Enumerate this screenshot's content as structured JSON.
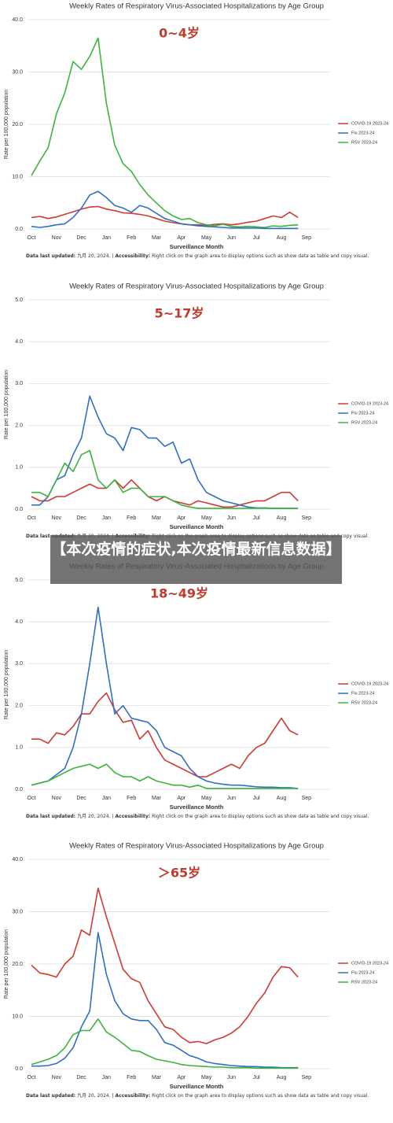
{
  "banner": "【本次疫情的症状,本次疫情最新信息数据】",
  "chart_data": [
    {
      "type": "line",
      "title": "Weekly Rates of Respiratory Virus-Associated Hospitalizations by Age Group",
      "subtitle": "0~4岁",
      "xlabel": "Surveillance Month",
      "ylabel": "Rate per 100,000 population",
      "categories": [
        "Oct",
        null,
        null,
        "Nov",
        null,
        null,
        "Dec",
        null,
        null,
        "Jan",
        null,
        null,
        "Feb",
        null,
        null,
        "Mar",
        null,
        null,
        "Apr",
        null,
        null,
        "May",
        null,
        null,
        "Jun",
        null,
        null,
        "Jul",
        null,
        null,
        "Aug",
        null,
        null,
        "Sep",
        null,
        null
      ],
      "ylim": [
        0,
        40
      ],
      "yticks": [
        {
          "value": 0,
          "label": "0.0"
        },
        {
          "value": 10,
          "label": "10.0"
        },
        {
          "value": 20,
          "label": "20.0"
        },
        {
          "value": 30,
          "label": "30.0"
        },
        {
          "value": 40,
          "label": "40.0"
        }
      ],
      "grid": true,
      "series": [
        {
          "name": "COVID-19 2023-24",
          "color": "#d03a32",
          "values": [
            2.2,
            2.4,
            2,
            2.3,
            2.8,
            3.3,
            3.8,
            4.2,
            4.3,
            3.8,
            3.5,
            3.1,
            3,
            2.8,
            2.5,
            2,
            1.5,
            1.2,
            1,
            0.8,
            0.8,
            0.7,
            0.9,
            1,
            0.8,
            1,
            1.3,
            1.5,
            2,
            2.5,
            2.2,
            3.2,
            2.2,
            null,
            null,
            null
          ]
        },
        {
          "name": "Flu 2023-24",
          "color": "#2f6fc4",
          "values": [
            0.5,
            0.3,
            0.5,
            0.8,
            1,
            2.2,
            4,
            6.5,
            7.2,
            6,
            4.5,
            4,
            3.2,
            4.5,
            4,
            3,
            2,
            1.5,
            1,
            0.8,
            0.6,
            0.5,
            0.4,
            0.3,
            0.2,
            0.2,
            0.2,
            0.2,
            0.1,
            0.1,
            0.1,
            0.1,
            0.1,
            null,
            null,
            null
          ]
        },
        {
          "name": "RSV 2023-24",
          "color": "#3cb43c",
          "values": [
            10.2,
            13,
            15.5,
            22,
            26,
            32,
            30.5,
            33,
            36.5,
            24,
            16,
            12.5,
            11,
            8.5,
            6.5,
            5,
            3.5,
            2.5,
            1.8,
            2,
            1.2,
            0.8,
            0.6,
            0.9,
            0.5,
            0.4,
            0.5,
            0.4,
            0.3,
            0.6,
            0.5,
            0.7,
            0.8,
            null,
            null,
            null
          ]
        }
      ],
      "note": [
        "Data last updated:",
        " 九月 20, 2024. | ",
        "Accessibility:",
        " Right click on the graph area to display options such as show data as table and copy visual."
      ]
    },
    {
      "type": "line",
      "title": "Weekly Rates of Respiratory Virus-Associated Hospitalizations by Age Group",
      "subtitle": "5~17岁",
      "xlabel": "Surveillance Month",
      "ylabel": "Rate per 100,000 population",
      "categories": [
        "Oct",
        null,
        null,
        "Nov",
        null,
        null,
        "Dec",
        null,
        null,
        "Jan",
        null,
        null,
        "Feb",
        null,
        null,
        "Mar",
        null,
        null,
        "Apr",
        null,
        null,
        "May",
        null,
        null,
        "Jun",
        null,
        null,
        "Jul",
        null,
        null,
        "Aug",
        null,
        null,
        "Sep",
        null,
        null
      ],
      "ylim": [
        0,
        5
      ],
      "yticks": [
        {
          "value": 0,
          "label": "0.0"
        },
        {
          "value": 1,
          "label": "1.0"
        },
        {
          "value": 2,
          "label": "2.0"
        },
        {
          "value": 3,
          "label": "3.0"
        },
        {
          "value": 4,
          "label": "4.0"
        },
        {
          "value": 5,
          "label": "5.0"
        }
      ],
      "grid": true,
      "series": [
        {
          "name": "COVID-19 2023-24",
          "color": "#d03a32",
          "values": [
            0.3,
            0.2,
            0.2,
            0.3,
            0.3,
            0.4,
            0.5,
            0.6,
            0.5,
            0.5,
            0.7,
            0.5,
            0.7,
            0.5,
            0.3,
            0.2,
            0.3,
            0.2,
            0.15,
            0.1,
            0.2,
            0.15,
            0.1,
            0.05,
            0.05,
            0.1,
            0.15,
            0.2,
            0.2,
            0.3,
            0.4,
            0.4,
            0.2,
            null,
            null,
            null
          ]
        },
        {
          "name": "Flu 2023-24",
          "color": "#2f6fc4",
          "values": [
            0.1,
            0.1,
            0.3,
            0.7,
            0.8,
            1.3,
            1.7,
            2.7,
            2.2,
            1.8,
            1.7,
            1.4,
            1.95,
            1.9,
            1.7,
            1.7,
            1.5,
            1.6,
            1.1,
            1.2,
            0.7,
            0.4,
            0.3,
            0.2,
            0.15,
            0.1,
            0.05,
            0.03,
            0.03,
            0.02,
            0.02,
            0.02,
            0.02,
            null,
            null,
            null
          ]
        },
        {
          "name": "RSV 2023-24",
          "color": "#3cb43c",
          "values": [
            0.4,
            0.4,
            0.3,
            0.7,
            1.1,
            0.9,
            1.3,
            1.4,
            0.7,
            0.5,
            0.7,
            0.4,
            0.5,
            0.5,
            0.3,
            0.3,
            0.3,
            0.2,
            0.1,
            0.05,
            0.02,
            0.02,
            0.02,
            0.02,
            0.02,
            0.02,
            0.02,
            0.02,
            0.02,
            0.02,
            0.02,
            0.02,
            0.02,
            null,
            null,
            null
          ]
        }
      ],
      "note": [
        "Data last updated:",
        " 九月 20, 2024. | ",
        "Accessibility:",
        " Right click on the graph area to display options such as show data as table and copy visual."
      ]
    },
    {
      "type": "line",
      "title": "Weekly Rates of Respiratory Virus-Associated Hospitalizations by Age Group",
      "subtitle": "18~49岁",
      "xlabel": "Surveillance Month",
      "ylabel": "Rate per 100,000 population",
      "categories": [
        "Oct",
        null,
        null,
        "Nov",
        null,
        null,
        "Dec",
        null,
        null,
        "Jan",
        null,
        null,
        "Feb",
        null,
        null,
        "Mar",
        null,
        null,
        "Apr",
        null,
        null,
        "May",
        null,
        null,
        "Jun",
        null,
        null,
        "Jul",
        null,
        null,
        "Aug",
        null,
        null,
        "Sep",
        null,
        null
      ],
      "ylim": [
        0,
        5
      ],
      "yticks": [
        {
          "value": 0,
          "label": "0.0"
        },
        {
          "value": 1,
          "label": "1.0"
        },
        {
          "value": 2,
          "label": "2.0"
        },
        {
          "value": 3,
          "label": "3.0"
        },
        {
          "value": 4,
          "label": "4.0"
        },
        {
          "value": 5,
          "label": "5.0"
        }
      ],
      "grid": true,
      "series": [
        {
          "name": "COVID-19 2023-24",
          "color": "#d03a32",
          "values": [
            1.2,
            1.2,
            1.1,
            1.35,
            1.3,
            1.5,
            1.8,
            1.8,
            2.1,
            2.3,
            1.9,
            1.6,
            1.65,
            1.2,
            1.4,
            1,
            0.7,
            0.6,
            0.5,
            0.4,
            0.3,
            0.3,
            0.4,
            0.5,
            0.6,
            0.5,
            0.8,
            1,
            1.1,
            1.4,
            1.7,
            1.4,
            1.3,
            null,
            null,
            null
          ]
        },
        {
          "name": "Flu 2023-24",
          "color": "#2f6fc4",
          "values": [
            0.1,
            0.15,
            0.2,
            0.35,
            0.5,
            1,
            1.8,
            3,
            4.35,
            3,
            1.8,
            2,
            1.7,
            1.65,
            1.6,
            1.4,
            1,
            0.9,
            0.8,
            0.5,
            0.3,
            0.2,
            0.15,
            0.12,
            0.1,
            0.1,
            0.08,
            0.06,
            0.05,
            0.05,
            0.04,
            0.04,
            0.02,
            null,
            null,
            null
          ]
        },
        {
          "name": "RSV 2023-24",
          "color": "#3cb43c",
          "values": [
            0.1,
            0.15,
            0.2,
            0.3,
            0.4,
            0.5,
            0.55,
            0.6,
            0.5,
            0.6,
            0.4,
            0.3,
            0.3,
            0.2,
            0.3,
            0.2,
            0.15,
            0.1,
            0.1,
            0.05,
            0.1,
            0.02,
            0.02,
            0.02,
            0.02,
            0.02,
            0.02,
            0.02,
            0.02,
            0.02,
            0.02,
            0.02,
            0.02,
            null,
            null,
            null
          ]
        }
      ],
      "note": [
        "Data last updated:",
        " 九月 20, 2024. | ",
        "Accessibility:",
        " Right click on the graph area to display options such as show data as table and copy visual."
      ]
    },
    {
      "type": "line",
      "title": "Weekly Rates of Respiratory Virus-Associated Hospitalizations by Age Group",
      "subtitle": "＞65岁",
      "xlabel": "Surveillance Month",
      "ylabel": "Rate per 100,000 population",
      "categories": [
        "Oct",
        null,
        null,
        "Nov",
        null,
        null,
        "Dec",
        null,
        null,
        "Jan",
        null,
        null,
        "Feb",
        null,
        null,
        "Mar",
        null,
        null,
        "Apr",
        null,
        null,
        "May",
        null,
        null,
        "Jun",
        null,
        null,
        "Jul",
        null,
        null,
        "Aug",
        null,
        null,
        "Sep",
        null,
        null
      ],
      "ylim": [
        0,
        40
      ],
      "yticks": [
        {
          "value": 0,
          "label": "0.0"
        },
        {
          "value": 10,
          "label": "10.0"
        },
        {
          "value": 20,
          "label": "20.0"
        },
        {
          "value": 30,
          "label": "30.0"
        },
        {
          "value": 40,
          "label": "40.0"
        }
      ],
      "grid": true,
      "series": [
        {
          "name": "COVID-19 2023-24",
          "color": "#d03a32",
          "values": [
            19.8,
            18.3,
            18,
            17.5,
            20,
            21.5,
            26.5,
            25.5,
            34.5,
            29,
            24,
            19,
            17.2,
            16.5,
            13,
            10.5,
            8,
            7.5,
            6,
            5,
            5.2,
            4.8,
            5.5,
            6,
            6.8,
            8,
            10,
            12.5,
            14.5,
            17.5,
            19.5,
            19.3,
            17.5,
            null,
            null,
            null
          ]
        },
        {
          "name": "Flu 2023-24",
          "color": "#2f6fc4",
          "values": [
            0.5,
            0.5,
            0.6,
            1,
            2,
            4,
            8,
            11,
            26,
            18,
            13,
            10.5,
            9.5,
            9.2,
            9.2,
            7.5,
            5,
            4.5,
            3.5,
            2.5,
            2,
            1.3,
            1,
            0.8,
            0.6,
            0.5,
            0.4,
            0.4,
            0.3,
            0.3,
            0.2,
            0.2,
            0.2,
            null,
            null,
            null
          ]
        },
        {
          "name": "RSV 2023-24",
          "color": "#3cb43c",
          "values": [
            0.8,
            1.3,
            1.8,
            2.5,
            4,
            6.5,
            7.3,
            7.3,
            9.5,
            7,
            6,
            4.8,
            3.5,
            3.3,
            2.5,
            1.8,
            1.5,
            1.2,
            0.8,
            0.6,
            0.5,
            0.4,
            0.3,
            0.3,
            0.2,
            0.2,
            0.2,
            0.1,
            0.1,
            0.1,
            0.1,
            0.1,
            0.1,
            null,
            null,
            null
          ]
        }
      ],
      "note": [
        "Data last updated:",
        " 九月 20, 2024. | ",
        "Accessibility:",
        " Right click on the graph area to display options such as show data as table and copy visual."
      ]
    }
  ]
}
